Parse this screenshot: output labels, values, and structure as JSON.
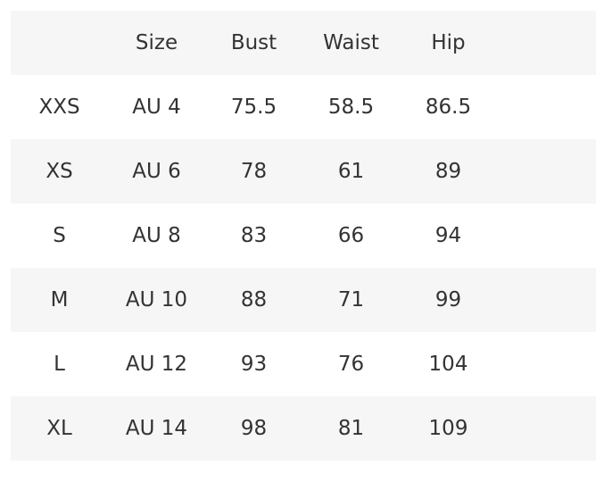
{
  "size_chart": {
    "headers": [
      "",
      "Size",
      "Bust",
      "Waist",
      "Hip"
    ],
    "rows": [
      [
        "XXS",
        "AU 4",
        "75.5",
        "58.5",
        "86.5"
      ],
      [
        "XS",
        "AU 6",
        "78",
        "61",
        "89"
      ],
      [
        "S",
        "AU 8",
        "83",
        "66",
        "94"
      ],
      [
        "M",
        "AU 10",
        "88",
        "71",
        "99"
      ],
      [
        "L",
        "AU 12",
        "93",
        "76",
        "104"
      ],
      [
        "XL",
        "AU 14",
        "98",
        "81",
        "109"
      ]
    ],
    "stripe_color": "#f6f6f6",
    "text_color": "#333333"
  }
}
